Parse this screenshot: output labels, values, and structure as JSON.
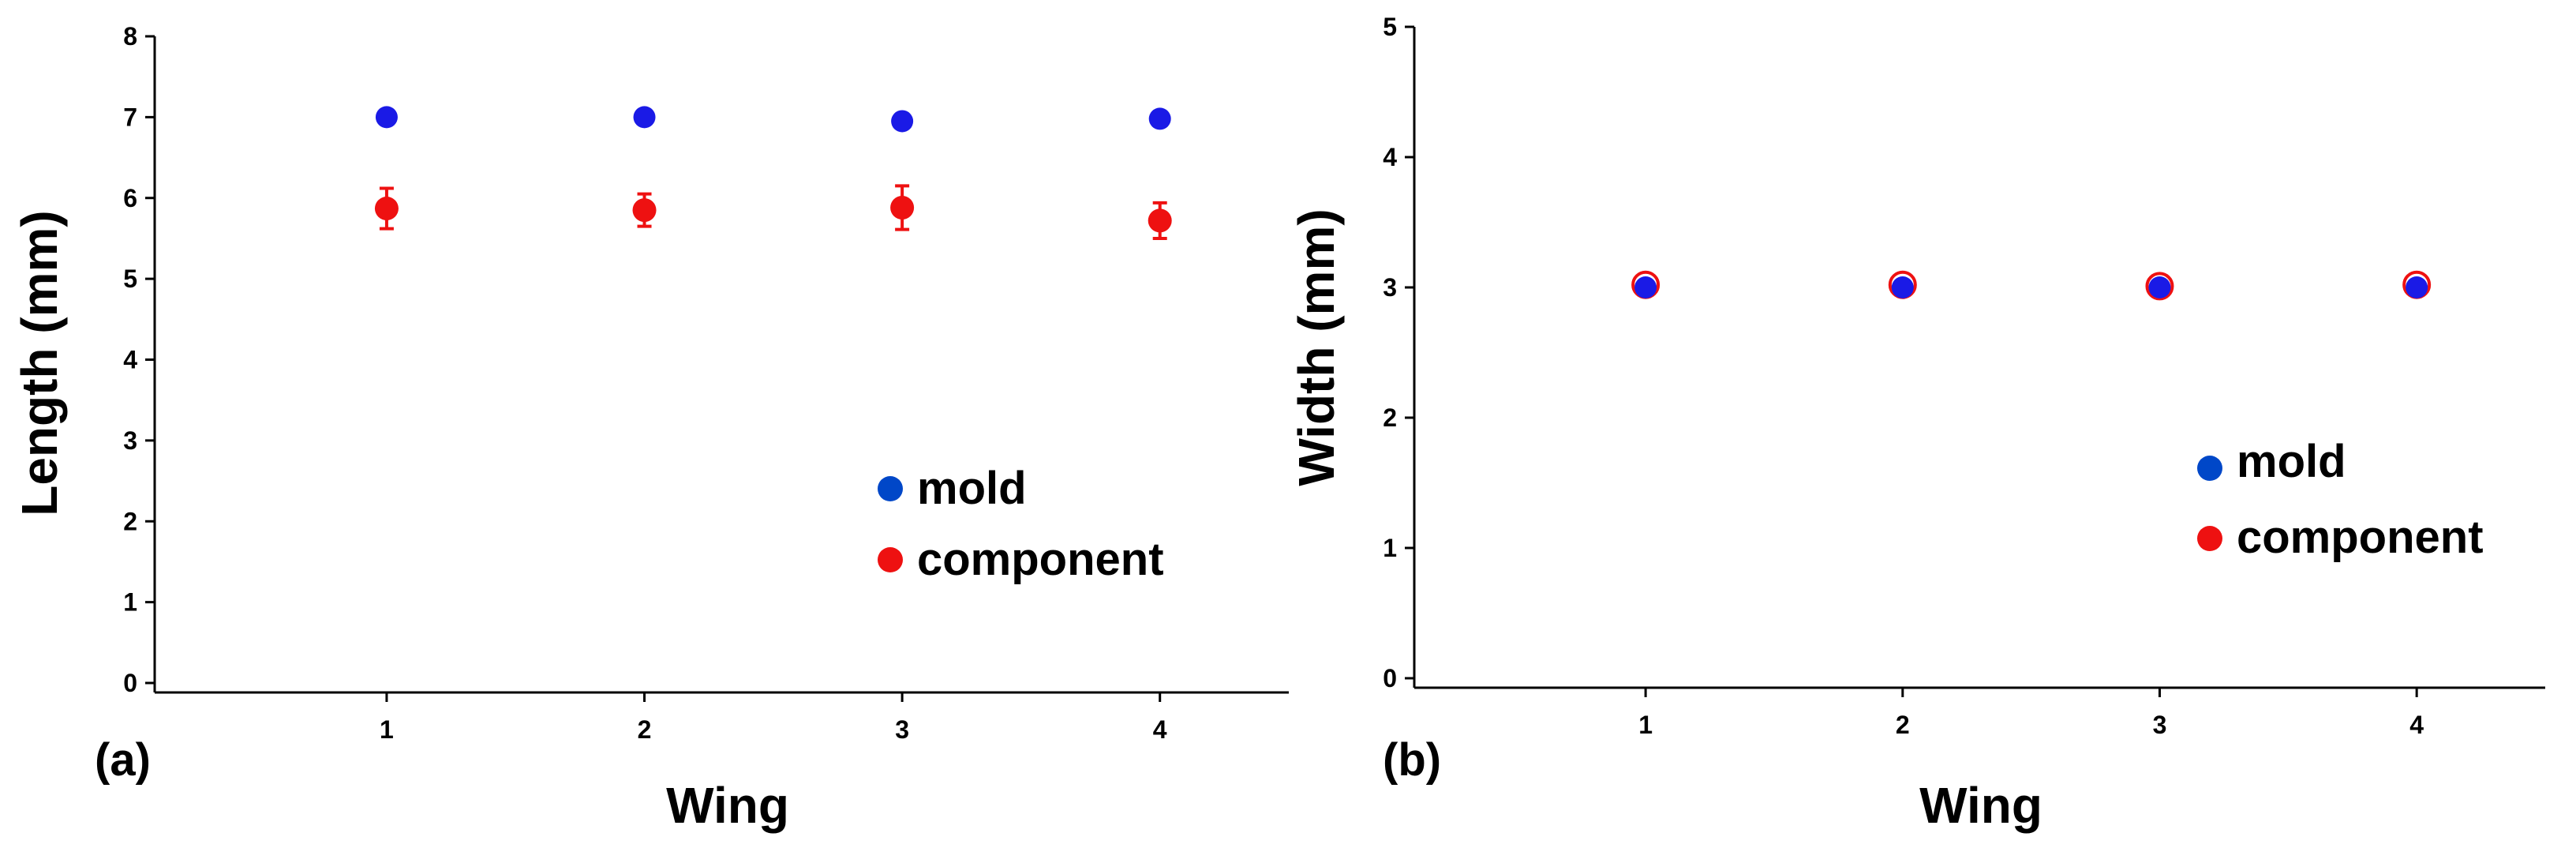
{
  "chart_data": [
    {
      "type": "scatter",
      "panel_label": "(a)",
      "xlabel": "Wing",
      "ylabel": "Length (mm)",
      "xlim": [
        0.1,
        4.5
      ],
      "ylim": [
        0,
        8
      ],
      "x_ticks": [
        "1",
        "2",
        "3",
        "4"
      ],
      "y_ticks": [
        "0",
        "1",
        "2",
        "3",
        "4",
        "5",
        "6",
        "7",
        "8"
      ],
      "grid": false,
      "legend_position": "lower-right",
      "series": [
        {
          "name": "mold",
          "color": "#1a1ae6",
          "x": [
            1,
            2,
            3,
            4
          ],
          "y": [
            7.0,
            7.0,
            6.95,
            6.98
          ],
          "err": [
            0,
            0,
            0,
            0
          ]
        },
        {
          "name": "component",
          "color": "#ee1111",
          "x": [
            1,
            2,
            3,
            4
          ],
          "y": [
            5.87,
            5.85,
            5.88,
            5.72
          ],
          "err": [
            0.25,
            0.2,
            0.27,
            0.22
          ]
        }
      ]
    },
    {
      "type": "scatter",
      "panel_label": "(b)",
      "xlabel": "Wing",
      "ylabel": "Width (mm)",
      "xlim": [
        0.1,
        4.5
      ],
      "ylim": [
        0,
        5
      ],
      "x_ticks": [
        "1",
        "2",
        "3",
        "4"
      ],
      "y_ticks": [
        "0",
        "1",
        "2",
        "3",
        "4",
        "5"
      ],
      "grid": false,
      "legend_position": "lower-right",
      "series": [
        {
          "name": "mold",
          "color": "#1a1ae6",
          "x": [
            1,
            2,
            3,
            4
          ],
          "y": [
            3.0,
            3.0,
            3.0,
            3.0
          ],
          "err": [
            0,
            0,
            0,
            0
          ]
        },
        {
          "name": "component",
          "color": "#ee1111",
          "x": [
            1,
            2,
            3,
            4
          ],
          "y": [
            3.02,
            3.02,
            3.01,
            3.02
          ],
          "err": [
            0.03,
            0.03,
            0.03,
            0.03
          ]
        }
      ]
    }
  ]
}
